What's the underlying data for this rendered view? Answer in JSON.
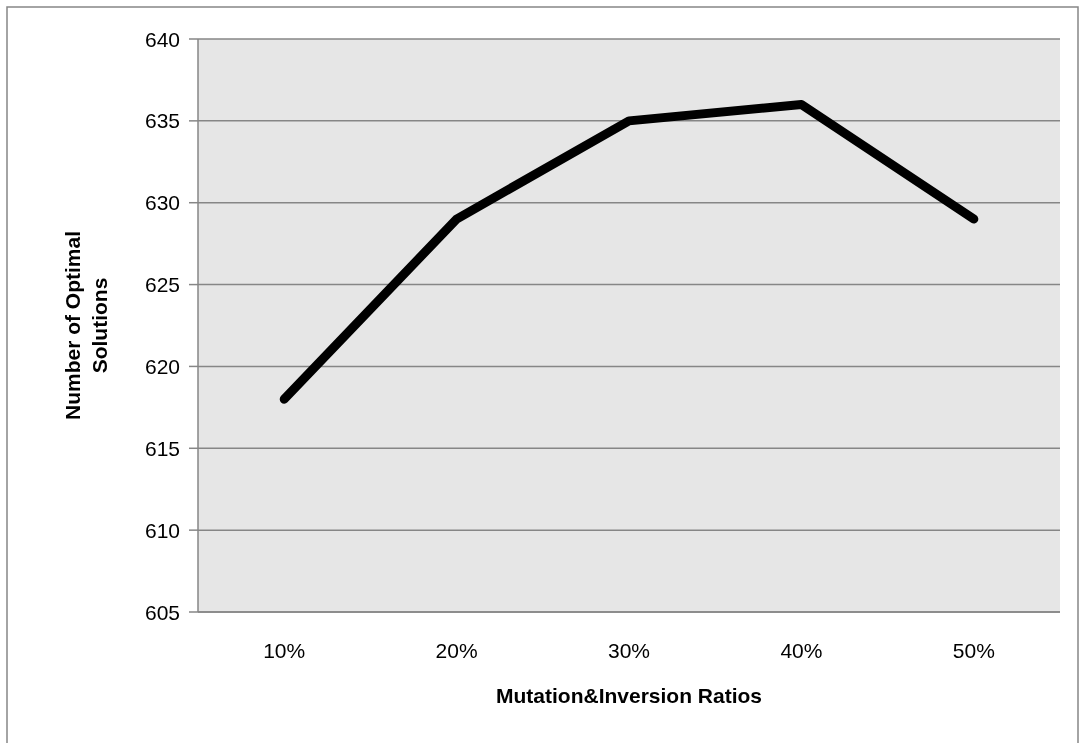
{
  "chart_data": {
    "type": "line",
    "xlabel": "Mutation&Inversion Ratios",
    "ylabel": "Number of Optimal Solutions",
    "categories": [
      "10%",
      "20%",
      "30%",
      "40%",
      "50%"
    ],
    "series": [
      {
        "color": "#000000",
        "values": [
          618,
          629,
          635,
          636,
          629
        ]
      }
    ],
    "ylim": [
      605,
      640
    ],
    "yticks": [
      605,
      610,
      615,
      620,
      625,
      630,
      635,
      640
    ],
    "grid": "y",
    "marker": "none",
    "line_style": "solid"
  }
}
